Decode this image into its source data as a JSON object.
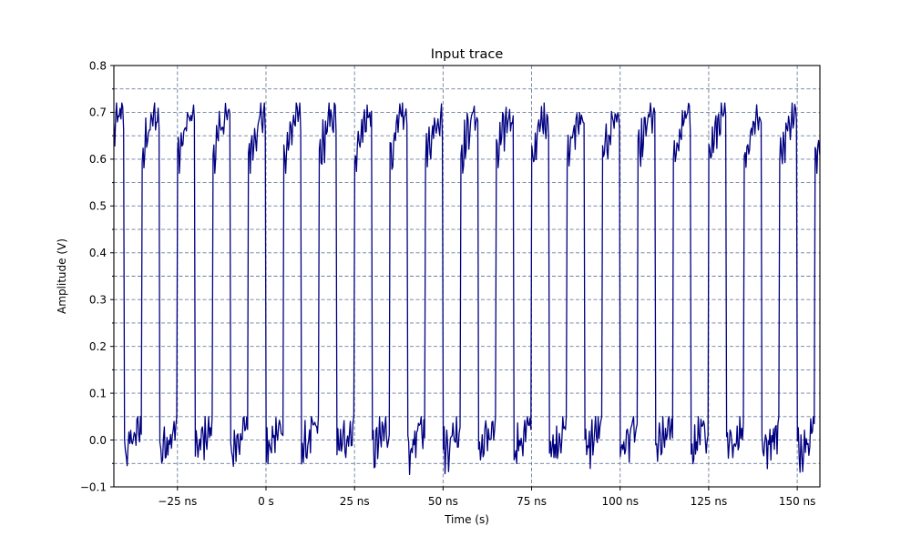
{
  "chart_data": {
    "type": "line",
    "title": "Input trace",
    "xlabel": "Time (s)",
    "ylabel": "Amplitude (V)",
    "xlim_ns": [
      -42.95,
      156.4
    ],
    "ylim": [
      -0.1,
      0.8
    ],
    "grid": true,
    "grid_style": "dashed, major+minor on y (0.05 V), major on x (25 ns)",
    "legend": null,
    "x_ticks": [
      -25,
      0,
      25,
      50,
      75,
      100,
      125,
      150
    ],
    "x_tick_labels": [
      "−25 ns",
      "0 s",
      "25 ns",
      "50 ns",
      "75 ns",
      "100 ns",
      "125 ns",
      "150 ns"
    ],
    "y_ticks": [
      -0.1,
      0.0,
      0.1,
      0.2,
      0.3,
      0.4,
      0.5,
      0.6,
      0.7,
      0.8
    ],
    "y_tick_labels": [
      "−0.1",
      "0.0",
      "0.1",
      "0.2",
      "0.3",
      "0.4",
      "0.5",
      "0.6",
      "0.7",
      "0.8"
    ],
    "y_minor_grid": [
      -0.05,
      0.05,
      0.15,
      0.25,
      0.35,
      0.45,
      0.55,
      0.65,
      0.75
    ],
    "series": [
      {
        "name": "Input trace",
        "color": "#000080",
        "description": "Noisy square wave, period 10 ns, 50% duty; high level ~0.67 V (ripple 0.58-0.72 V), low level ~0.0 V (ripple -0.075-0.05 V); falling edges at multiples of 10 ns, rising edges at 5 ns + multiples of 10 ns",
        "period_ns": 10,
        "high_level_v": 0.67,
        "low_level_v": 0.0,
        "high_range_v": [
          0.58,
          0.72
        ],
        "low_range_v": [
          -0.075,
          0.05
        ],
        "falling_edges_ns": [
          -40,
          -30,
          -20,
          -10,
          0,
          10,
          20,
          30,
          40,
          50,
          60,
          70,
          80,
          90,
          100,
          110,
          120,
          130,
          140,
          150
        ],
        "rising_edges_ns": [
          -35,
          -25,
          -15,
          -5,
          5,
          15,
          25,
          35,
          45,
          55,
          65,
          75,
          85,
          95,
          105,
          115,
          125,
          135,
          145,
          155
        ],
        "start_state": "high",
        "start_value_v": 0.62
      }
    ]
  },
  "colors": {
    "trace": "#000080",
    "grid": "#5b6f8f",
    "frame": "#000000",
    "background": "#ffffff"
  }
}
